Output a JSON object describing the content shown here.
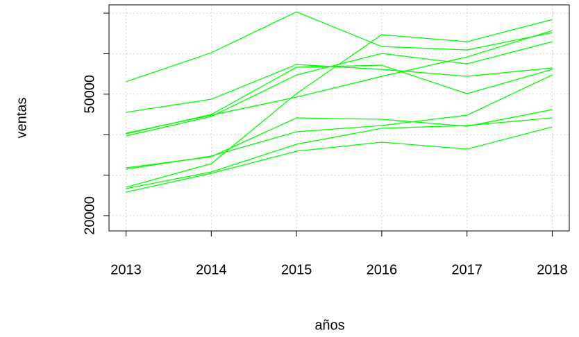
{
  "chart_data": {
    "type": "line",
    "x_label": "años",
    "y_label": "ventas",
    "x": [
      2013,
      2014,
      2015,
      2016,
      2017,
      2018
    ],
    "xlim": [
      2012.8,
      2018.2
    ],
    "ylim": [
      16230,
      72060
    ],
    "yticks": [
      20000,
      30000,
      40000,
      50000,
      60000,
      70000
    ],
    "ytick_labels": [
      20000,
      50000
    ],
    "grid": true,
    "series": [
      {
        "color": "#00ff00",
        "values": [
          53080,
          60230,
          70330,
          61770,
          60920,
          65200
        ]
      },
      {
        "color": "#00ff00",
        "values": [
          45510,
          48760,
          57320,
          56120,
          54410,
          56470
        ]
      },
      {
        "color": "#00ff00",
        "values": [
          40200,
          45000,
          56640,
          57150,
          50130,
          56120
        ]
      },
      {
        "color": "#00ff00",
        "values": [
          39690,
          44480,
          54750,
          60060,
          57490,
          62970
        ]
      },
      {
        "color": "#00ff00",
        "values": [
          40370,
          44820,
          49280,
          54410,
          59200,
          65710
        ]
      },
      {
        "color": "#00ff00",
        "values": [
          31810,
          34550,
          44140,
          43800,
          42080,
          46190
        ]
      },
      {
        "color": "#00ff00",
        "values": [
          31470,
          34720,
          40710,
          42260,
          44820,
          54750
        ]
      },
      {
        "color": "#00ff00",
        "values": [
          27020,
          32840,
          50130,
          64680,
          62970,
          68450
        ]
      },
      {
        "color": "#00ff00",
        "values": [
          26680,
          30790,
          37630,
          41570,
          42260,
          44140
        ]
      },
      {
        "color": "#00ff00",
        "values": [
          25820,
          30440,
          35920,
          38150,
          36440,
          41910
        ]
      }
    ]
  }
}
